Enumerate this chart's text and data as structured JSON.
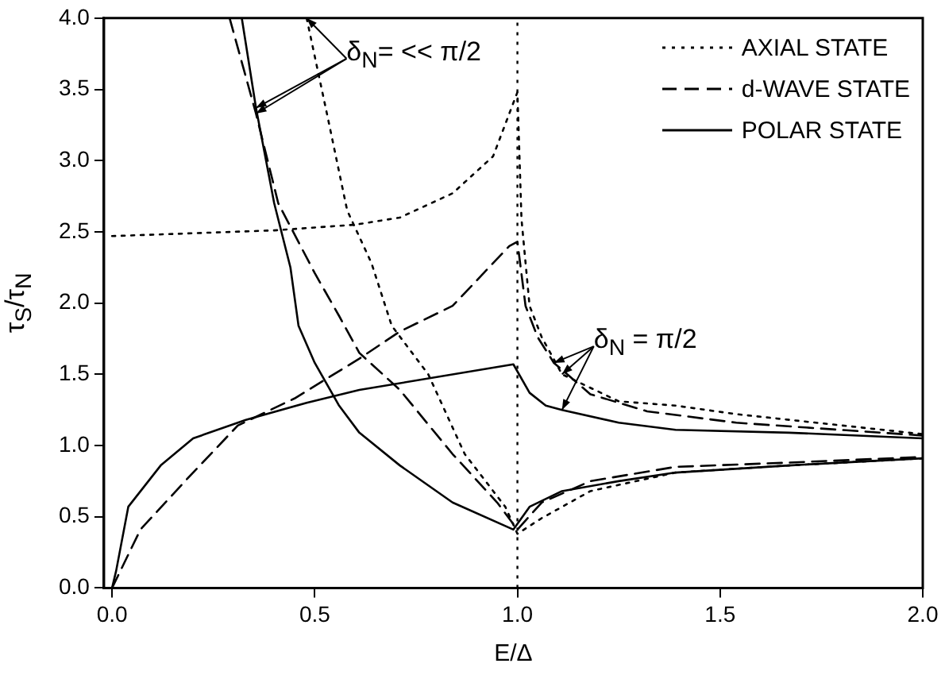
{
  "chart_data": {
    "type": "line",
    "xlabel": "E/Δ",
    "ylabel": "τ$_{S}$/τ$_{N}$",
    "xlim": [
      -0.02,
      2.0
    ],
    "ylim": [
      0,
      4
    ],
    "xticks": [
      {
        "value": 0,
        "label": "0.0"
      },
      {
        "value": 0.5,
        "label": "0.5"
      },
      {
        "value": 1,
        "label": "1.0"
      },
      {
        "value": 1.5,
        "label": "1.5"
      },
      {
        "value": 2,
        "label": "2.0"
      }
    ],
    "yticks": [
      {
        "value": 0,
        "label": "0.0"
      },
      {
        "value": 0.5,
        "label": "0.5"
      },
      {
        "value": 1,
        "label": "1.0"
      },
      {
        "value": 1.5,
        "label": "1.5"
      },
      {
        "value": 2,
        "label": "2.0"
      },
      {
        "value": 2.5,
        "label": "2.5"
      },
      {
        "value": 3,
        "label": "3.0"
      },
      {
        "value": 3.5,
        "label": "3.5"
      },
      {
        "value": 4,
        "label": "4.0"
      }
    ],
    "grid": false,
    "legend": "top right",
    "marker": "none",
    "series": [
      {
        "name": "AXIAL STATE",
        "color": "#000000",
        "line_style": "dotted",
        "x": [
          0.48,
          0.53,
          0.58,
          0.64,
          0.69,
          0.78,
          0.87,
          0.97,
          1.0,
          1.06,
          1.18,
          1.39,
          1.67,
          2.0
        ],
        "values": [
          4.0,
          3.33,
          2.65,
          2.28,
          1.84,
          1.5,
          0.94,
          0.57,
          0.38,
          0.49,
          0.68,
          0.81,
          0.86,
          0.91
        ]
      },
      {
        "name": "d-WAVE STATE",
        "color": "#000000",
        "line_style": "dashed",
        "x": [
          0.29,
          0.355,
          0.41,
          0.5,
          0.56,
          0.61,
          0.71,
          0.84,
          0.95,
          1.0,
          1.06,
          1.18,
          1.39,
          1.67,
          2.0
        ],
        "values": [
          4.0,
          3.33,
          2.7,
          2.21,
          1.91,
          1.65,
          1.39,
          0.94,
          0.6,
          0.41,
          0.6,
          0.75,
          0.85,
          0.88,
          0.92
        ]
      },
      {
        "name": "POLAR STATE",
        "color": "#000000",
        "line_style": "solid",
        "x": [
          0.32,
          0.355,
          0.4,
          0.44,
          0.46,
          0.5,
          0.56,
          0.61,
          0.71,
          0.84,
          0.99,
          1.03,
          1.11,
          1.25,
          1.39,
          1.67,
          2.0
        ],
        "values": [
          4.0,
          3.37,
          2.7,
          2.25,
          1.84,
          1.58,
          1.28,
          1.09,
          0.86,
          0.6,
          0.41,
          0.57,
          0.68,
          0.75,
          0.81,
          0.86,
          0.91
        ]
      },
      {
        "color": "#000000",
        "line_style": "dotted",
        "x": [
          0,
          0.4,
          0.6,
          0.71,
          0.84,
          0.94,
          0.98,
          1.0,
          1.01,
          1.03,
          1.06,
          1.11,
          1.25,
          1.39,
          1.54,
          2.0
        ],
        "values": [
          2.47,
          2.51,
          2.55,
          2.6,
          2.77,
          3.03,
          3.33,
          3.48,
          2.59,
          1.98,
          1.76,
          1.5,
          1.31,
          1.28,
          1.22,
          1.08
        ]
      },
      {
        "color": "#000000",
        "line_style": "dashed",
        "x": [
          0,
          0.07,
          0.18,
          0.31,
          0.45,
          0.61,
          0.71,
          0.84,
          0.98,
          1.0,
          1.02,
          1.05,
          1.09,
          1.18,
          1.32,
          1.54,
          2.0
        ],
        "values": [
          0,
          0.41,
          0.75,
          1.14,
          1.33,
          1.61,
          1.8,
          1.98,
          2.4,
          2.43,
          1.98,
          1.76,
          1.58,
          1.36,
          1.24,
          1.16,
          1.07
        ]
      },
      {
        "color": "#000000",
        "line_style": "solid",
        "x": [
          0,
          0.01,
          0.04,
          0.12,
          0.2,
          0.33,
          0.48,
          0.61,
          0.99,
          1.03,
          1.07,
          1.11,
          1.25,
          1.39,
          1.67,
          2.0
        ],
        "values": [
          0,
          0.12,
          0.57,
          0.86,
          1.05,
          1.18,
          1.3,
          1.39,
          1.57,
          1.37,
          1.28,
          1.25,
          1.16,
          1.11,
          1.09,
          1.05
        ]
      }
    ],
    "ref_lines": [
      {
        "axis": "x",
        "value": 1.0,
        "color": "#000000",
        "line_style": "dotted"
      }
    ],
    "annotations": [
      {
        "text": "δ$_{N}$= << π/2",
        "x": 0.355,
        "y": 3.37
      },
      {
        "text": "δ$_{N}$ = π/2",
        "x": 1.11,
        "y": 1.25
      }
    ]
  }
}
